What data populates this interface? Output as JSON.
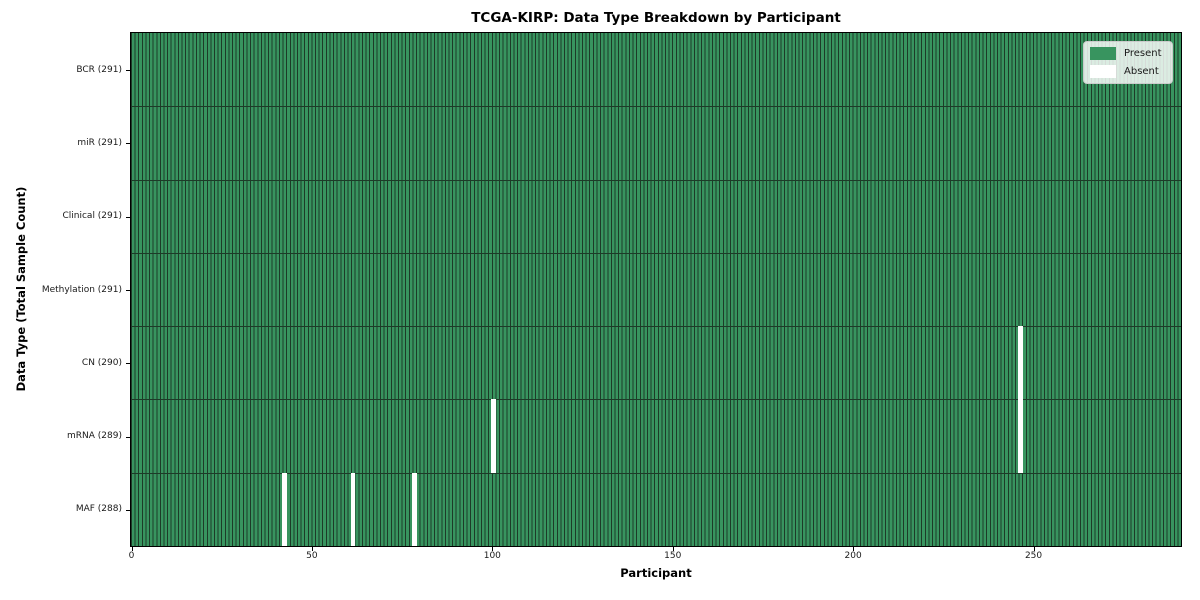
{
  "chart_data": {
    "type": "heatmap",
    "title": "TCGA-KIRP: Data Type Breakdown by Participant",
    "xlabel": "Participant",
    "ylabel": "Data Type (Total Sample Count)",
    "n_participants": 291,
    "x_ticks": [
      0,
      50,
      100,
      150,
      200,
      250
    ],
    "grid": false,
    "legend_position": "upper right",
    "rows": [
      {
        "label": "BCR (291)",
        "data_type": "BCR",
        "total_samples": 291,
        "absent_participants": []
      },
      {
        "label": "miR (291)",
        "data_type": "miR",
        "total_samples": 291,
        "absent_participants": []
      },
      {
        "label": "Clinical (291)",
        "data_type": "Clinical",
        "total_samples": 291,
        "absent_participants": []
      },
      {
        "label": "Methylation (291)",
        "data_type": "Methylation",
        "total_samples": 291,
        "absent_participants": []
      },
      {
        "label": "CN (290)",
        "data_type": "CN",
        "total_samples": 290,
        "absent_participants": [
          246
        ]
      },
      {
        "label": "mRNA (289)",
        "data_type": "mRNA",
        "total_samples": 289,
        "absent_participants": [
          100,
          246
        ]
      },
      {
        "label": "MAF (288)",
        "data_type": "MAF",
        "total_samples": 288,
        "absent_participants": [
          42,
          61,
          78
        ]
      }
    ],
    "legend": [
      {
        "label": "Present",
        "color": "#38945f"
      },
      {
        "label": "Absent",
        "color": "#ffffff"
      }
    ],
    "colors": {
      "present": "#38945f",
      "absent": "#ffffff",
      "cell_edge": "#1d3b28",
      "frame": "#000000"
    }
  }
}
